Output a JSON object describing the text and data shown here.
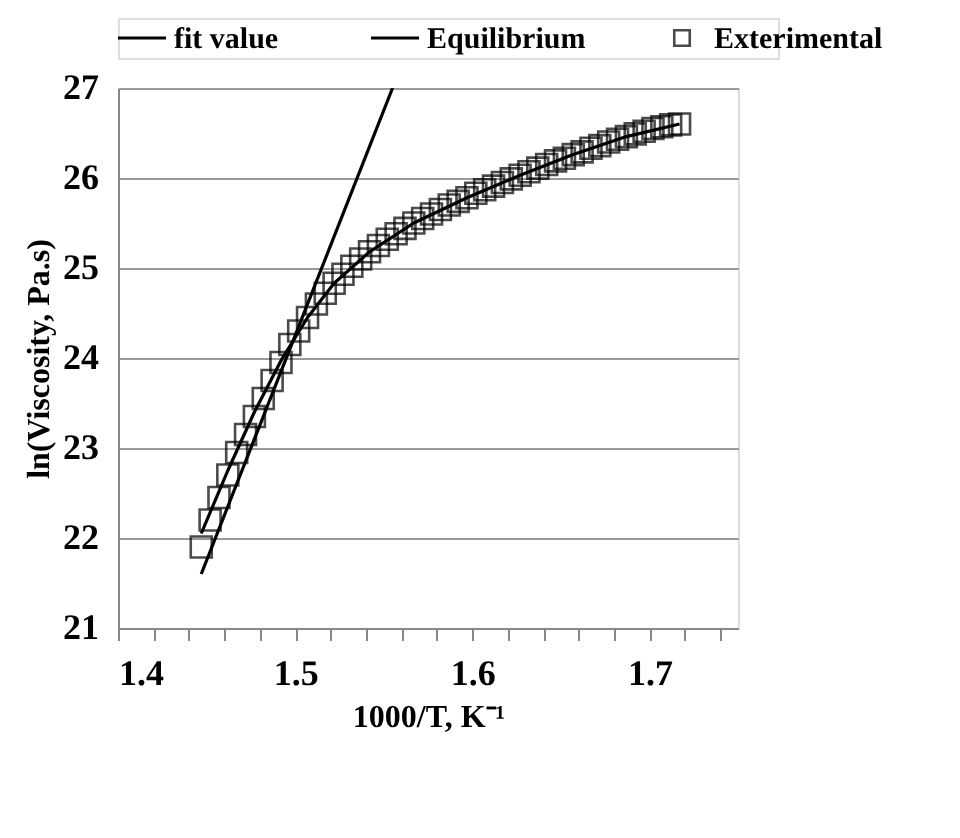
{
  "chart_data": {
    "type": "scatter",
    "xlabel": "1000/T, K⁻¹",
    "ylabel": "ln(Viscosity, Pa.s)",
    "xlim": [
      1.4,
      1.75
    ],
    "ylim": [
      21,
      27
    ],
    "xticks": [
      1.4,
      {
        "value": 1.42,
        "label": null
      },
      {
        "value": 1.44,
        "label": null
      },
      {
        "value": 1.46,
        "label": null
      },
      {
        "value": 1.48,
        "label": null
      },
      1.5,
      {
        "value": 1.52,
        "label": null
      },
      {
        "value": 1.54,
        "label": null
      },
      {
        "value": 1.56,
        "label": null
      },
      {
        "value": 1.58,
        "label": null
      },
      1.6,
      {
        "value": 1.62,
        "label": null
      },
      {
        "value": 1.64,
        "label": null
      },
      {
        "value": 1.66,
        "label": null
      },
      {
        "value": 1.68,
        "label": null
      },
      1.7,
      {
        "value": 1.72,
        "label": null
      },
      {
        "value": 1.74,
        "label": null
      }
    ],
    "yticks": [
      21,
      22,
      23,
      24,
      25,
      26,
      27
    ],
    "grid": "y",
    "legend": "top",
    "series": [
      {
        "name": "fit value",
        "type": "line",
        "color": "#000000",
        "x": [
          1.447,
          1.462,
          1.477,
          1.492,
          1.507,
          1.522,
          1.542,
          1.567,
          1.597,
          1.627,
          1.657,
          1.687,
          1.717
        ],
        "values": [
          22.05,
          22.75,
          23.4,
          23.97,
          24.45,
          24.83,
          25.18,
          25.5,
          25.78,
          26.03,
          26.26,
          26.46,
          26.6
        ]
      },
      {
        "name": "Equilibrium",
        "type": "line",
        "color": "#000000",
        "x": [
          1.447,
          1.555
        ],
        "values": [
          21.6,
          27
        ]
      },
      {
        "name": "Exterimental",
        "marker": "square",
        "color": "#000000",
        "x": [
          1.447,
          1.452,
          1.457,
          1.462,
          1.467,
          1.472,
          1.477,
          1.482,
          1.487,
          1.492,
          1.497,
          1.502,
          1.507,
          1.512,
          1.517,
          1.522,
          1.527,
          1.532,
          1.537,
          1.542,
          1.547,
          1.552,
          1.557,
          1.562,
          1.567,
          1.572,
          1.577,
          1.582,
          1.587,
          1.592,
          1.597,
          1.602,
          1.607,
          1.612,
          1.617,
          1.622,
          1.627,
          1.632,
          1.637,
          1.642,
          1.647,
          1.652,
          1.657,
          1.662,
          1.667,
          1.672,
          1.677,
          1.682,
          1.687,
          1.692,
          1.697,
          1.702,
          1.707,
          1.712,
          1.717
        ],
        "values": [
          21.9,
          22.2,
          22.45,
          22.7,
          22.95,
          23.15,
          23.35,
          23.55,
          23.75,
          23.95,
          24.15,
          24.3,
          24.45,
          24.6,
          24.72,
          24.83,
          24.93,
          25.02,
          25.1,
          25.18,
          25.25,
          25.32,
          25.38,
          25.44,
          25.5,
          25.55,
          25.6,
          25.65,
          25.7,
          25.74,
          25.78,
          25.83,
          25.87,
          25.91,
          25.95,
          25.99,
          26.03,
          26.07,
          26.11,
          26.15,
          26.19,
          26.22,
          26.26,
          26.29,
          26.33,
          26.36,
          26.4,
          26.43,
          26.46,
          26.49,
          26.52,
          26.55,
          26.57,
          26.59,
          26.6
        ]
      }
    ]
  }
}
